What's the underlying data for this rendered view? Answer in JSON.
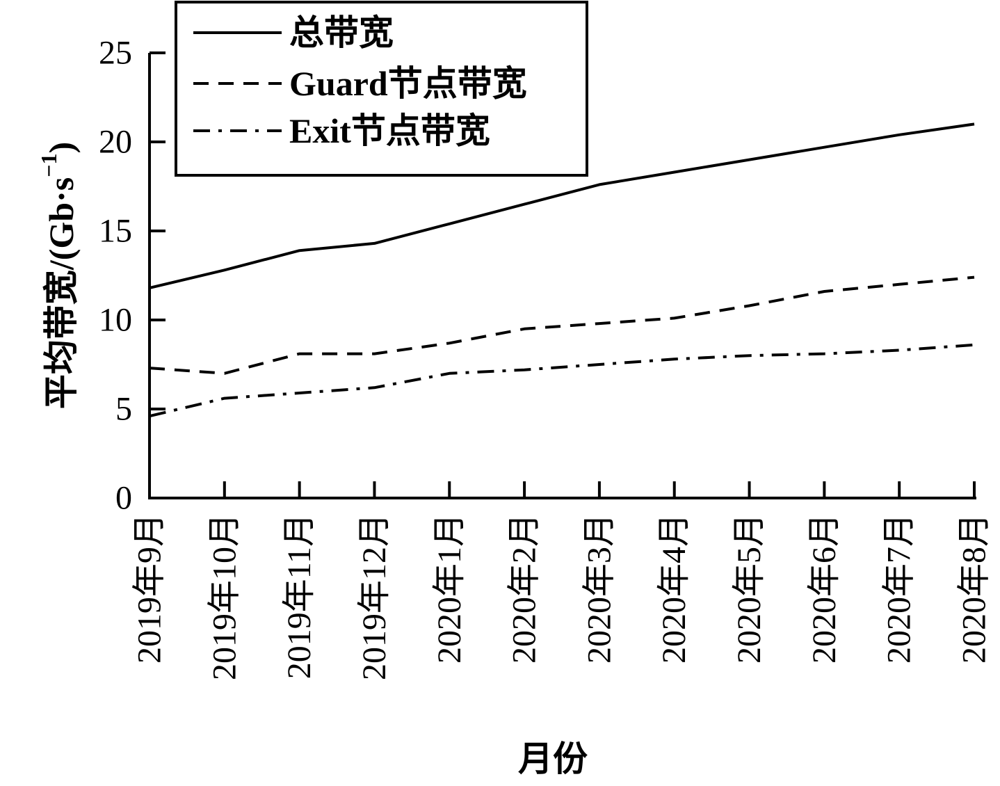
{
  "chart_data": {
    "type": "line",
    "xlabel": "月份",
    "ylabel": "平均带宽/(Gb·s",
    "ylabel_sup": "−1",
    "ylabel_close": ")",
    "ylim": [
      0,
      25
    ],
    "yticks": [
      0,
      5,
      10,
      15,
      20,
      25
    ],
    "grid": false,
    "legend_position": "top-left",
    "categories": [
      "2019年9月",
      "2019年10月",
      "2019年11月",
      "2019年12月",
      "2020年1月",
      "2020年2月",
      "2020年3月",
      "2020年4月",
      "2020年5月",
      "2020年6月",
      "2020年7月",
      "2020年8月"
    ],
    "series": [
      {
        "name": "总带宽",
        "style": "solid",
        "color": "#000000",
        "values": [
          11.8,
          12.8,
          13.9,
          14.3,
          15.4,
          16.5,
          17.6,
          18.3,
          19.0,
          19.7,
          20.4,
          21.0
        ]
      },
      {
        "name": "Guard节点带宽",
        "style": "dashed",
        "color": "#000000",
        "values": [
          7.3,
          7.0,
          8.1,
          8.1,
          8.7,
          9.5,
          9.8,
          10.1,
          10.8,
          11.6,
          12.0,
          12.4
        ]
      },
      {
        "name": "Exit节点带宽",
        "style": "dash-dot",
        "color": "#000000",
        "values": [
          4.6,
          5.6,
          5.9,
          6.2,
          7.0,
          7.2,
          7.5,
          7.8,
          8.0,
          8.1,
          8.3,
          8.6
        ]
      }
    ]
  }
}
